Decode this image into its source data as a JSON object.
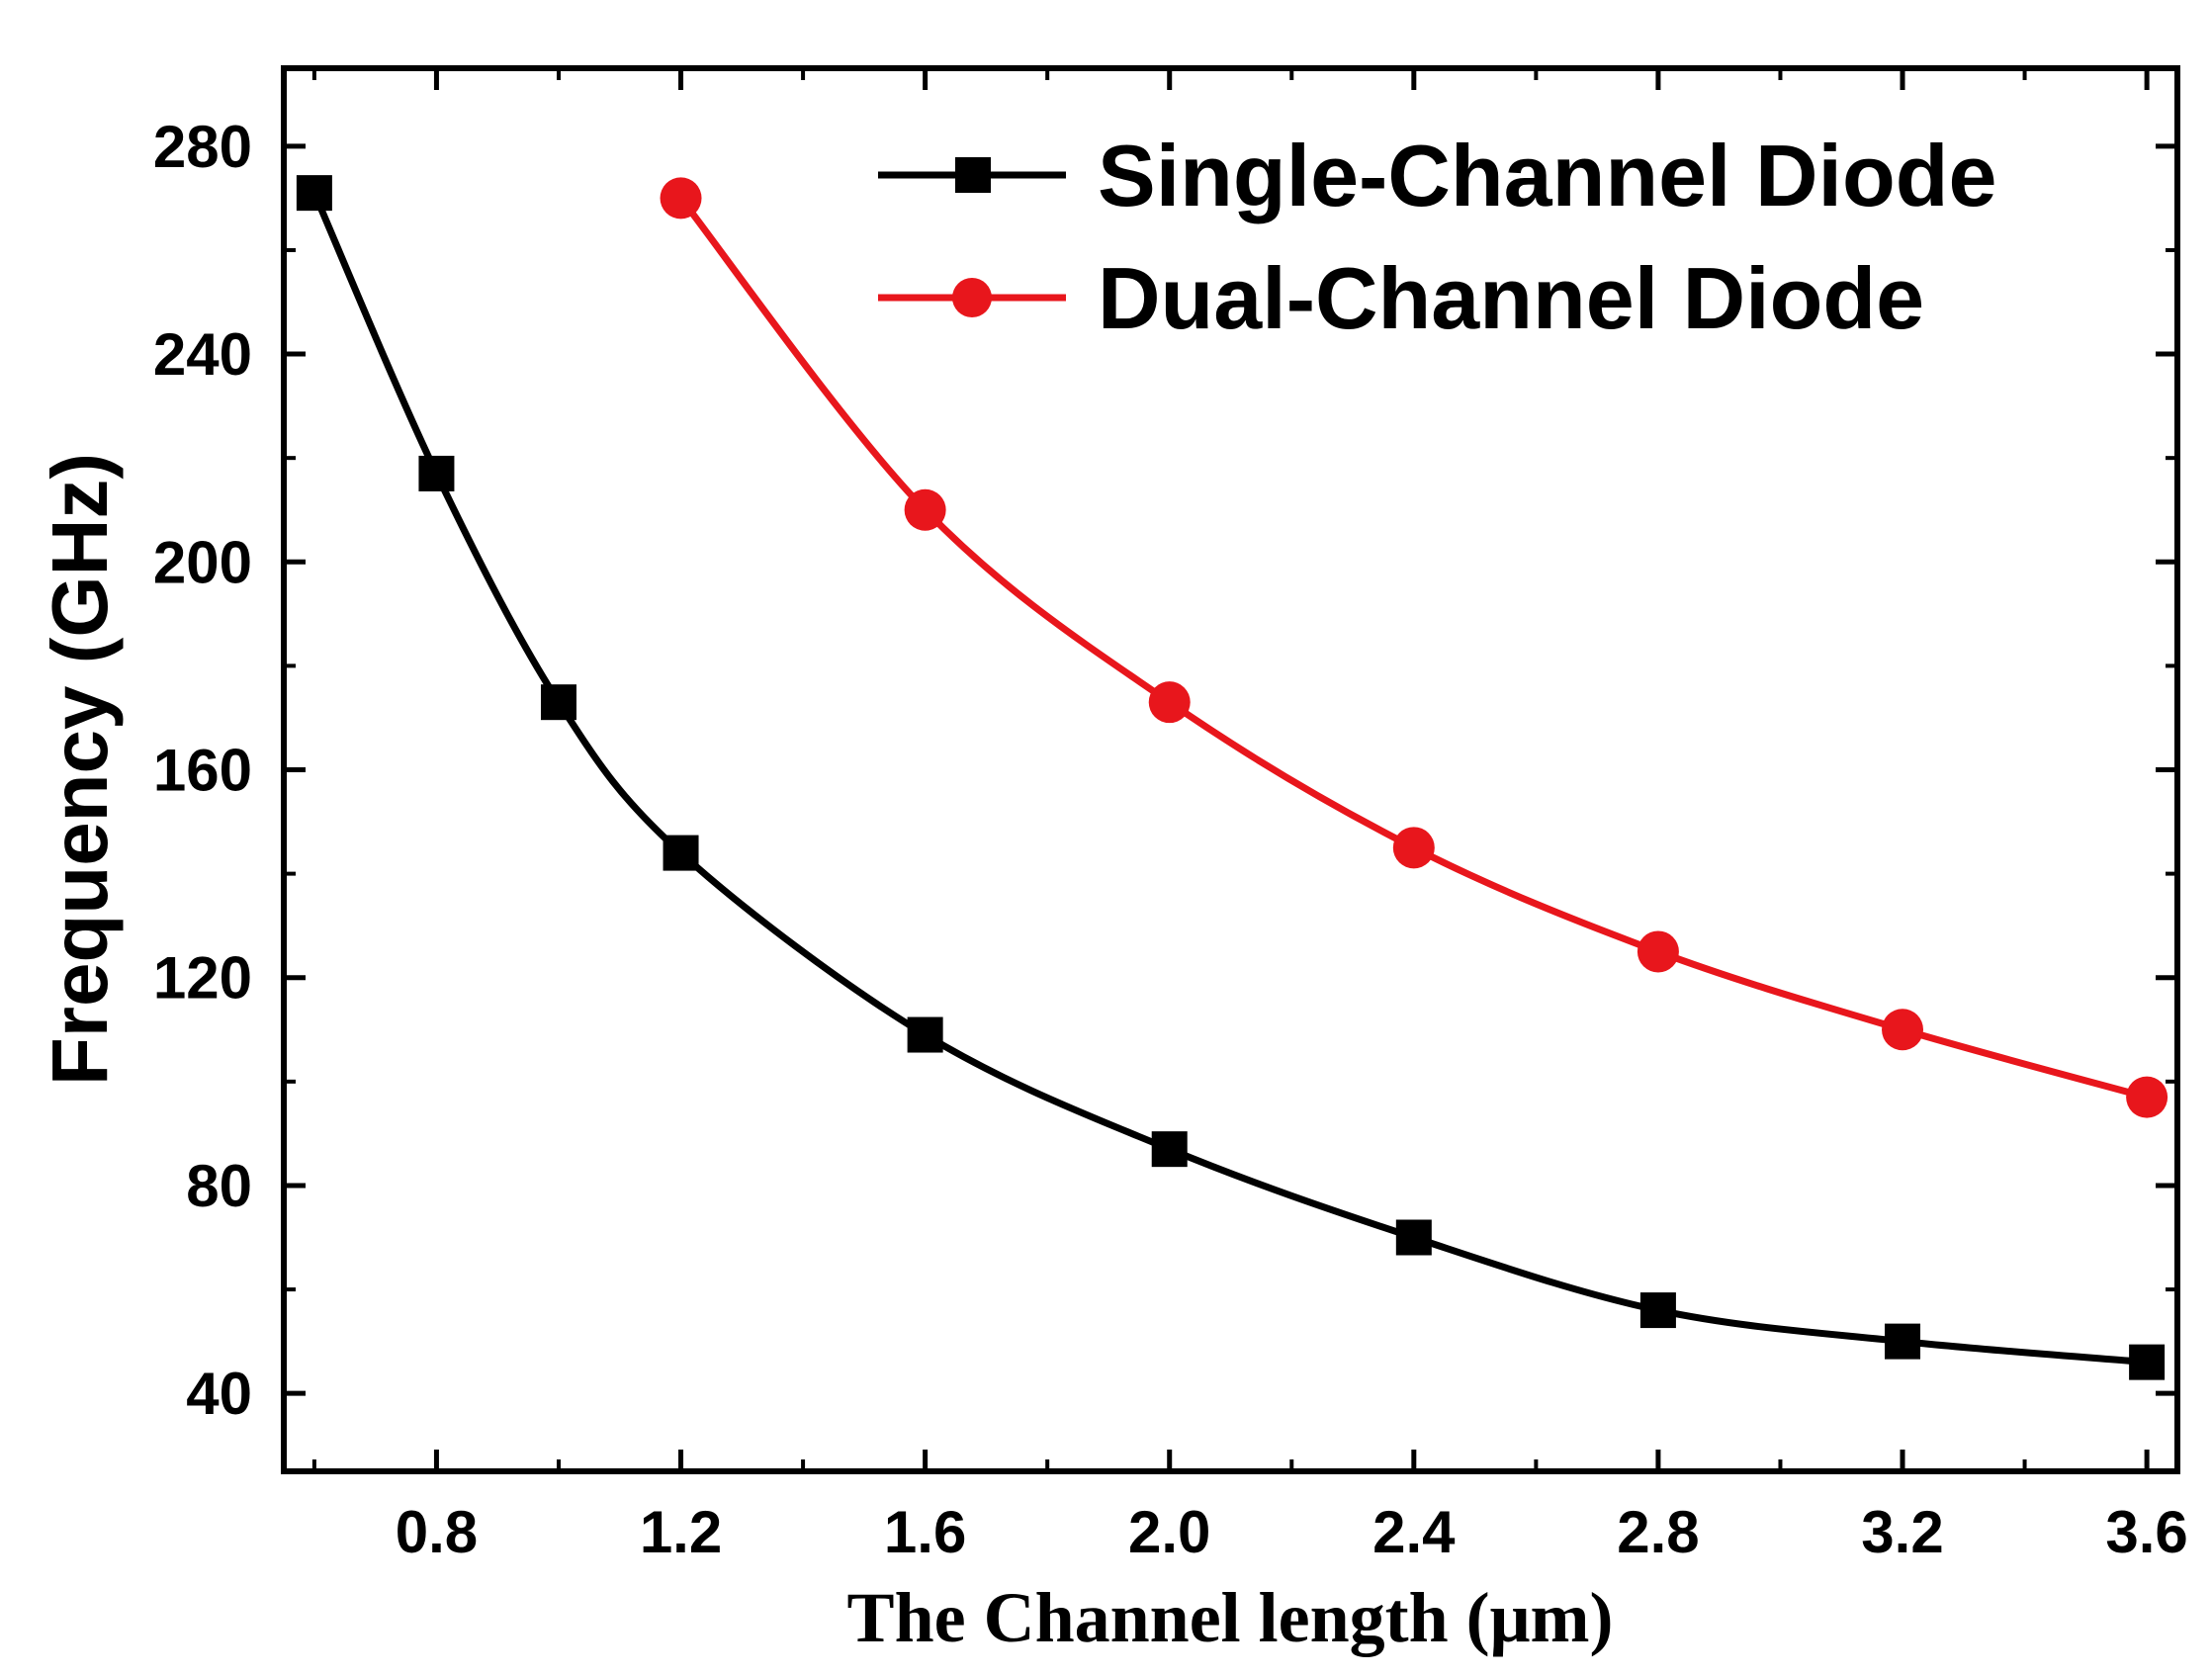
{
  "chart_data": {
    "type": "line",
    "title": "",
    "xlabel": "The Channel length (μm)",
    "ylabel": "Frequency (GHz)",
    "xlim": [
      0.55,
      3.65
    ],
    "ylim": [
      25,
      295
    ],
    "xticks": [
      "0.8",
      "1.2",
      "1.6",
      "2.0",
      "2.4",
      "2.8",
      "3.2",
      "3.6"
    ],
    "xtick_values": [
      0.8,
      1.2,
      1.6,
      2.0,
      2.4,
      2.8,
      3.2,
      3.6
    ],
    "yticks": [
      "40",
      "80",
      "120",
      "160",
      "200",
      "240",
      "280"
    ],
    "ytick_values": [
      40,
      80,
      120,
      160,
      200,
      240,
      280
    ],
    "grid": false,
    "legend_position": "top-right",
    "series": [
      {
        "name": "Single-Channel Diode",
        "color": "#000000",
        "marker": "square",
        "x": [
          0.6,
          0.8,
          1.0,
          1.2,
          1.6,
          2.0,
          2.4,
          2.8,
          3.2,
          3.6
        ],
        "y": [
          271,
          217,
          173,
          144,
          109,
          87,
          70,
          56,
          50,
          46
        ]
      },
      {
        "name": "Dual-Channel Diode",
        "color": "#e8161c",
        "marker": "circle",
        "x": [
          1.2,
          1.6,
          2.0,
          2.4,
          2.8,
          3.2,
          3.6
        ],
        "y": [
          270,
          210,
          173,
          145,
          125,
          110,
          97
        ]
      }
    ]
  }
}
